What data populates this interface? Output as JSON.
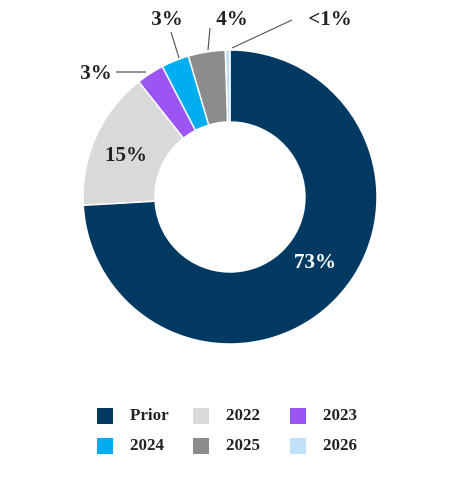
{
  "chart_data": {
    "type": "donut",
    "categories": [
      "Prior",
      "2022",
      "2023",
      "2024",
      "2025",
      "2026"
    ],
    "values": [
      73,
      15,
      3,
      3,
      4,
      0.5
    ],
    "value_labels": [
      "73%",
      "15%",
      "3%",
      "3%",
      "4%",
      "<1%"
    ],
    "colors": [
      "#003a63",
      "#d9d9d9",
      "#9b55f2",
      "#00aeef",
      "#8c8c8c",
      "#bfe0f6"
    ]
  }
}
